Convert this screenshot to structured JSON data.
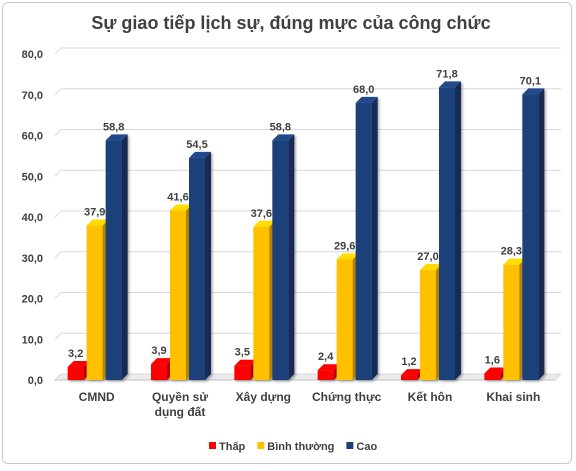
{
  "chart_data": {
    "type": "bar",
    "title": "Sự giao tiếp lịch sự, đúng mực của công chức",
    "categories": [
      [
        "CMND"
      ],
      [
        "Quyền sử",
        "dụng đất"
      ],
      [
        "Xây dựng"
      ],
      [
        "Chứng thực"
      ],
      [
        "Kết hôn"
      ],
      [
        "Khai sinh"
      ]
    ],
    "series": [
      {
        "name": "Thấp",
        "color": "#ff0000",
        "values": [
          3.2,
          3.9,
          3.5,
          2.4,
          1.2,
          1.6
        ],
        "labels": [
          "3,2",
          "3,9",
          "3,5",
          "2,4",
          "1,2",
          "1,6"
        ]
      },
      {
        "name": "Bình thường",
        "color": "#ffc000",
        "values": [
          37.9,
          41.6,
          37.6,
          29.6,
          27.0,
          28.3
        ],
        "labels": [
          "37,9",
          "41,6",
          "37,6",
          "29,6",
          "27,0",
          "28,3"
        ]
      },
      {
        "name": "Cao",
        "color": "#1f3f7a",
        "values": [
          58.8,
          54.5,
          58.8,
          68.0,
          71.8,
          70.1
        ],
        "labels": [
          "58,8",
          "54,5",
          "58,8",
          "68,0",
          "71,8",
          "70,1"
        ]
      }
    ],
    "ylim": [
      0,
      80
    ],
    "yticks": [
      "0,0",
      "10,0",
      "20,0",
      "30,0",
      "40,0",
      "50,0",
      "60,0",
      "70,0",
      "80,0"
    ],
    "grid": true,
    "legend_position": "bottom",
    "style": "3d-column"
  }
}
